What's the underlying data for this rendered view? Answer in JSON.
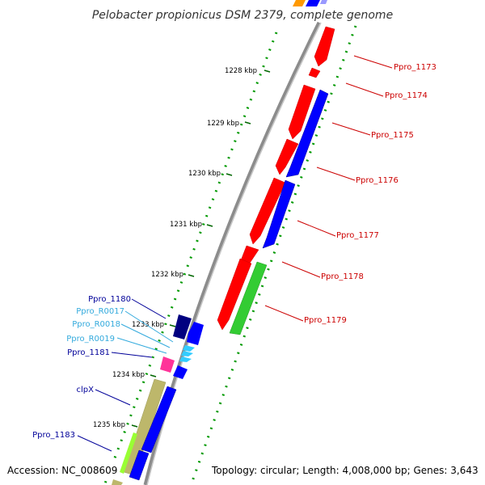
{
  "title": "Pelobacter propionicus DSM 2379, complete genome",
  "accession": "Accession: NC_008609",
  "topology": "Topology: circular; Length: 4,008,000 bp; Genes: 3,643",
  "kbp_ticks": [
    "1228 kbp",
    "1229 kbp",
    "1230 kbp",
    "1231 kbp",
    "1232 kbp",
    "1233 kbp",
    "1234 kbp",
    "1235 kbp"
  ],
  "labels": {
    "Ppro_1173": "Ppro_1173",
    "Ppro_1174": "Ppro_1174",
    "Ppro_1175": "Ppro_1175",
    "Ppro_1176": "Ppro_1176",
    "Ppro_1177": "Ppro_1177",
    "Ppro_1178": "Ppro_1178",
    "Ppro_1179": "Ppro_1179",
    "Ppro_1180": "Ppro_1180",
    "Ppro_R0017": "Ppro_R0017",
    "Ppro_R0018": "Ppro_R0018",
    "Ppro_R0019": "Ppro_R0019",
    "Ppro_1181": "Ppro_1181",
    "clpX": "clpX",
    "Ppro_1183": "Ppro_1183"
  },
  "colors": {
    "forward_cds": "#ff0000",
    "reverse_cds": "#0000ff",
    "green_cds": "#33cc33",
    "navy_cds": "#000080",
    "rna": "#33ccff",
    "pink": "#ff3399",
    "olive": "#bdb76b",
    "backbone": "#888888",
    "tick": "#006600",
    "label_red": "#cc0000",
    "label_navy": "#000099",
    "label_cyan": "#33aadd"
  }
}
